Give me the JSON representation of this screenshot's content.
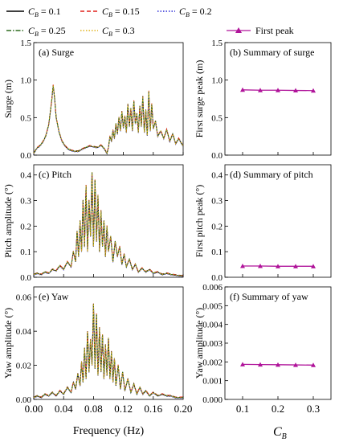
{
  "legend": {
    "entries": [
      {
        "label_prefix": "C",
        "sub": "B",
        "label_suffix": " = 0.1",
        "color": "#000000",
        "dash": "solid"
      },
      {
        "label_prefix": "C",
        "sub": "B",
        "label_suffix": " = 0.15",
        "color": "#e0201b",
        "dash": "dash"
      },
      {
        "label_prefix": "C",
        "sub": "B",
        "label_suffix": " = 0.2",
        "color": "#2a2ad6",
        "dash": "dot"
      },
      {
        "label_prefix": "C",
        "sub": "B",
        "label_suffix": " = 0.25",
        "color": "#2e6b1e",
        "dash": "dashdot"
      },
      {
        "label_prefix": "C",
        "sub": "B",
        "label_suffix": " = 0.3",
        "color": "#e0b21b",
        "dash": "dot"
      }
    ],
    "peak_entry": {
      "label": "First peak",
      "color": "#b0149a",
      "marker": "triangle"
    }
  },
  "chart_data": [
    {
      "id": "a",
      "type": "line",
      "title": "(a) Surge",
      "ylabel": "Surge (m)",
      "xlim": [
        0,
        0.2
      ],
      "ylim": [
        0,
        1.5
      ],
      "xticks": [
        0.0,
        0.04,
        0.08,
        0.12,
        0.16,
        0.2
      ],
      "yticks": [
        0.0,
        0.5,
        1.0,
        1.5
      ],
      "ytick_labels": [
        "0.0",
        "0.5",
        "1.0",
        "1.5"
      ],
      "series_note": "five C_B curves nearly overlap",
      "x": [
        0.0,
        0.004,
        0.008,
        0.012,
        0.016,
        0.02,
        0.024,
        0.026,
        0.028,
        0.03,
        0.034,
        0.038,
        0.042,
        0.046,
        0.05,
        0.055,
        0.06,
        0.065,
        0.07,
        0.075,
        0.08,
        0.085,
        0.09,
        0.094,
        0.098,
        0.1,
        0.102,
        0.104,
        0.106,
        0.108,
        0.11,
        0.112,
        0.114,
        0.116,
        0.118,
        0.12,
        0.122,
        0.124,
        0.126,
        0.128,
        0.13,
        0.132,
        0.134,
        0.136,
        0.138,
        0.14,
        0.142,
        0.144,
        0.146,
        0.148,
        0.15,
        0.152,
        0.154,
        0.156,
        0.158,
        0.16,
        0.163,
        0.166,
        0.17,
        0.174,
        0.178,
        0.182,
        0.186,
        0.19,
        0.194,
        0.198,
        0.2
      ],
      "y": [
        0.02,
        0.09,
        0.12,
        0.17,
        0.25,
        0.4,
        0.72,
        0.93,
        0.75,
        0.5,
        0.3,
        0.18,
        0.12,
        0.08,
        0.06,
        0.05,
        0.05,
        0.08,
        0.1,
        0.12,
        0.11,
        0.1,
        0.13,
        0.09,
        0.02,
        0.1,
        0.25,
        0.18,
        0.33,
        0.22,
        0.42,
        0.28,
        0.5,
        0.32,
        0.58,
        0.36,
        0.52,
        0.3,
        0.68,
        0.38,
        0.62,
        0.32,
        0.72,
        0.42,
        0.55,
        0.3,
        0.65,
        0.38,
        0.78,
        0.3,
        0.6,
        0.26,
        0.85,
        0.32,
        0.68,
        0.35,
        0.45,
        0.25,
        0.32,
        0.22,
        0.34,
        0.18,
        0.28,
        0.15,
        0.22,
        0.15,
        0.12
      ]
    },
    {
      "id": "b",
      "type": "line",
      "title": "(b) Summary of surge",
      "ylabel": "First surge peak (m)",
      "xlim": [
        0.05,
        0.35
      ],
      "ylim": [
        0,
        1.5
      ],
      "xticks": [
        0.1,
        0.2,
        0.3
      ],
      "xtick_labels": [
        "",
        "",
        ""
      ],
      "yticks": [
        0.0,
        0.5,
        1.0,
        1.5
      ],
      "ytick_labels": [
        "0.0",
        "0.5",
        "1.0",
        "1.5"
      ],
      "series": [
        {
          "name": "First peak",
          "x": [
            0.1,
            0.15,
            0.2,
            0.25,
            0.3
          ],
          "values": [
            0.87,
            0.865,
            0.865,
            0.862,
            0.86
          ]
        }
      ]
    },
    {
      "id": "c",
      "type": "line",
      "title": "(c) Pitch",
      "ylabel": "Pitch amplitude (°)",
      "xlim": [
        0,
        0.2
      ],
      "ylim": [
        0,
        0.44
      ],
      "xticks": [
        0.0,
        0.04,
        0.08,
        0.12,
        0.16,
        0.2
      ],
      "yticks": [
        0.0,
        0.1,
        0.2,
        0.3,
        0.4
      ],
      "ytick_labels": [
        "0.0",
        "0.1",
        "0.2",
        "0.3",
        "0.4"
      ],
      "series_note": "five C_B curves nearly overlap",
      "x": [
        0.0,
        0.005,
        0.01,
        0.015,
        0.02,
        0.025,
        0.03,
        0.035,
        0.04,
        0.045,
        0.05,
        0.053,
        0.056,
        0.058,
        0.06,
        0.062,
        0.064,
        0.066,
        0.068,
        0.07,
        0.072,
        0.074,
        0.076,
        0.078,
        0.08,
        0.082,
        0.084,
        0.086,
        0.088,
        0.09,
        0.092,
        0.094,
        0.096,
        0.098,
        0.1,
        0.103,
        0.106,
        0.109,
        0.112,
        0.115,
        0.118,
        0.121,
        0.124,
        0.128,
        0.132,
        0.136,
        0.14,
        0.145,
        0.15,
        0.155,
        0.16,
        0.166,
        0.172,
        0.178,
        0.184,
        0.19,
        0.196,
        0.2
      ],
      "y": [
        0.01,
        0.015,
        0.01,
        0.02,
        0.015,
        0.03,
        0.025,
        0.045,
        0.03,
        0.06,
        0.04,
        0.1,
        0.06,
        0.18,
        0.08,
        0.22,
        0.1,
        0.3,
        0.12,
        0.36,
        0.1,
        0.3,
        0.16,
        0.41,
        0.12,
        0.38,
        0.14,
        0.32,
        0.1,
        0.26,
        0.12,
        0.22,
        0.08,
        0.2,
        0.1,
        0.16,
        0.06,
        0.14,
        0.08,
        0.12,
        0.05,
        0.09,
        0.04,
        0.07,
        0.03,
        0.05,
        0.02,
        0.035,
        0.02,
        0.03,
        0.015,
        0.02,
        0.01,
        0.015,
        0.01,
        0.008,
        0.005,
        0.005
      ]
    },
    {
      "id": "d",
      "type": "line",
      "title": "(d) Summary of pitch",
      "ylabel": "First pitch peak (°)",
      "xlim": [
        0.05,
        0.35
      ],
      "ylim": [
        0,
        0.44
      ],
      "xticks": [
        0.1,
        0.2,
        0.3
      ],
      "xtick_labels": [
        "",
        "",
        ""
      ],
      "yticks": [
        0.0,
        0.1,
        0.2,
        0.3,
        0.4
      ],
      "ytick_labels": [
        "0.0",
        "0.1",
        "0.2",
        "0.3",
        "0.4"
      ],
      "series": [
        {
          "name": "First peak",
          "x": [
            0.1,
            0.15,
            0.2,
            0.25,
            0.3
          ],
          "values": [
            0.044,
            0.044,
            0.043,
            0.043,
            0.043
          ]
        }
      ]
    },
    {
      "id": "e",
      "type": "line",
      "title": "(e) Yaw",
      "ylabel": "Yaw amplitude (°)",
      "xlim": [
        0,
        0.2
      ],
      "ylim": [
        0,
        0.066
      ],
      "xticks": [
        0.0,
        0.04,
        0.08,
        0.12,
        0.16,
        0.2
      ],
      "xtick_labels": [
        "0.00",
        "0.04",
        "0.08",
        "0.12",
        "0.16",
        "0.20"
      ],
      "yticks": [
        0.0,
        0.02,
        0.04,
        0.06
      ],
      "ytick_labels": [
        "0.00",
        "0.02",
        "0.04",
        "0.06"
      ],
      "xlabel": "Frequency (Hz)",
      "series_note": "five C_B curves nearly overlap",
      "x": [
        0.0,
        0.005,
        0.01,
        0.015,
        0.02,
        0.025,
        0.03,
        0.035,
        0.04,
        0.045,
        0.05,
        0.053,
        0.056,
        0.059,
        0.062,
        0.064,
        0.066,
        0.068,
        0.07,
        0.072,
        0.074,
        0.076,
        0.078,
        0.08,
        0.082,
        0.084,
        0.086,
        0.088,
        0.09,
        0.092,
        0.094,
        0.096,
        0.098,
        0.1,
        0.102,
        0.104,
        0.106,
        0.108,
        0.11,
        0.113,
        0.116,
        0.119,
        0.122,
        0.126,
        0.13,
        0.134,
        0.138,
        0.142,
        0.146,
        0.15,
        0.155,
        0.16,
        0.166,
        0.172,
        0.178,
        0.184,
        0.19,
        0.196,
        0.2
      ],
      "y": [
        0.001,
        0.002,
        0.001,
        0.003,
        0.002,
        0.004,
        0.002,
        0.005,
        0.003,
        0.007,
        0.004,
        0.01,
        0.006,
        0.015,
        0.008,
        0.022,
        0.01,
        0.03,
        0.012,
        0.04,
        0.016,
        0.035,
        0.02,
        0.056,
        0.018,
        0.05,
        0.014,
        0.042,
        0.016,
        0.038,
        0.012,
        0.032,
        0.014,
        0.036,
        0.012,
        0.028,
        0.01,
        0.024,
        0.008,
        0.02,
        0.006,
        0.016,
        0.005,
        0.012,
        0.004,
        0.009,
        0.003,
        0.007,
        0.003,
        0.005,
        0.002,
        0.004,
        0.002,
        0.003,
        0.002,
        0.002,
        0.001,
        0.001,
        0.001
      ]
    },
    {
      "id": "f",
      "type": "line",
      "title": "(f) Summary of yaw",
      "ylabel": "Yaw amplitude (°)",
      "xlim": [
        0.05,
        0.35
      ],
      "ylim": [
        0,
        0.006
      ],
      "xticks": [
        0.1,
        0.2,
        0.3
      ],
      "xtick_labels": [
        "0.1",
        "0.2",
        "0.3"
      ],
      "yticks": [
        0.0,
        0.001,
        0.002,
        0.003,
        0.004,
        0.005,
        0.006
      ],
      "ytick_labels": [
        "0.000",
        "0.001",
        "0.002",
        "0.003",
        "0.004",
        "0.005",
        "0.006"
      ],
      "xlabel_main": "C",
      "xlabel_sub": "B",
      "series": [
        {
          "name": "First peak",
          "x": [
            0.1,
            0.15,
            0.2,
            0.25,
            0.3
          ],
          "values": [
            0.00187,
            0.00186,
            0.00185,
            0.00184,
            0.00183
          ]
        }
      ]
    }
  ],
  "x_tick_labels_left_top": [
    "",
    "",
    "",
    "",
    "",
    ""
  ]
}
